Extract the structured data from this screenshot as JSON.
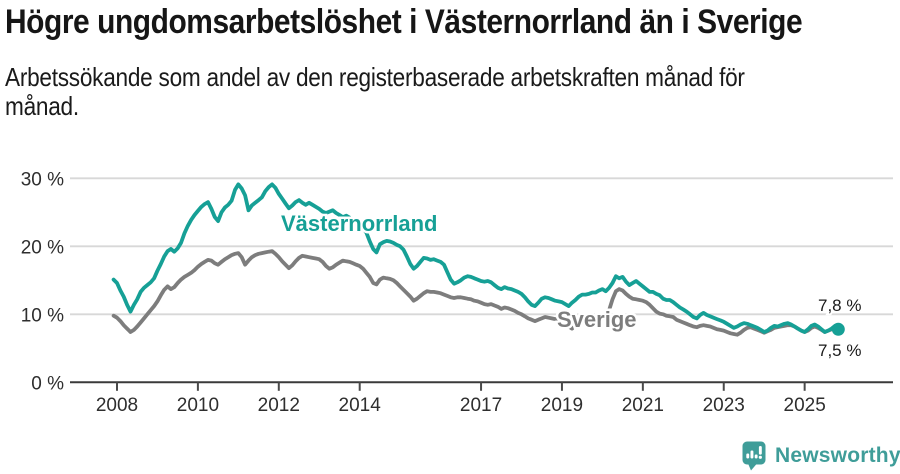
{
  "header": {
    "title": "Högre ungdomsarbetslöshet i Västernorrland än i Sverige",
    "subtitle": "Arbetssökande som andel av den registerbaserade arbetskraften månad för månad."
  },
  "footer": {
    "brand": "Newsworthy"
  },
  "colors": {
    "accent_teal": "#16a096",
    "series_gray": "#7d7d7d",
    "text_dark": "#161616",
    "gridline": "#d8d8d8",
    "axis": "#3a3a3a",
    "logo_teal": "#3f9d99",
    "background": "#ffffff"
  },
  "chart_data": {
    "type": "line",
    "title": "Högre ungdomsarbetslöshet i Västernorrland än i Sverige",
    "subtitle": "Arbetssökande som andel av den registerbaserade arbetskraften månad för månad.",
    "xlabel": "",
    "ylabel": "",
    "ylim": [
      0,
      30
    ],
    "xlim": [
      2007.9,
      2026.2
    ],
    "grid": "horizontal",
    "legend_position": "inline-labels",
    "y_ticks": [
      {
        "v": 0,
        "label": "0 %"
      },
      {
        "v": 10,
        "label": "10 %"
      },
      {
        "v": 20,
        "label": "20 %"
      },
      {
        "v": 30,
        "label": "30 %"
      }
    ],
    "x_ticks": [
      {
        "v": 2008,
        "label": "2008"
      },
      {
        "v": 2010,
        "label": "2010"
      },
      {
        "v": 2012,
        "label": "2012"
      },
      {
        "v": 2014,
        "label": "2014"
      },
      {
        "v": 2017,
        "label": "2017"
      },
      {
        "v": 2019,
        "label": "2019"
      },
      {
        "v": 2021,
        "label": "2021"
      },
      {
        "v": 2023,
        "label": "2023"
      },
      {
        "v": 2025,
        "label": "2025"
      }
    ],
    "x_start": 2007.9167,
    "x_step_years": 0.08333,
    "series": [
      {
        "name": "Västernorrland",
        "color": "#16a096",
        "end_label": "7,8 %",
        "end_value": 7.8,
        "end_dot": true,
        "values": [
          15.1,
          14.6,
          13.5,
          12.6,
          11.4,
          10.4,
          11.4,
          12.2,
          13.3,
          13.9,
          14.3,
          14.7,
          15.3,
          16.4,
          17.4,
          18.5,
          19.3,
          19.6,
          19.2,
          19.7,
          20.5,
          21.9,
          23.0,
          23.9,
          24.6,
          25.2,
          25.8,
          26.2,
          26.5,
          25.5,
          24.3,
          23.7,
          25.0,
          25.7,
          26.1,
          26.7,
          28.3,
          29.1,
          28.5,
          27.5,
          25.3,
          26.0,
          26.4,
          26.8,
          27.2,
          28.1,
          28.7,
          29.1,
          28.6,
          27.7,
          27.0,
          26.3,
          25.6,
          26.0,
          26.5,
          26.8,
          26.4,
          26.1,
          26.4,
          26.1,
          25.8,
          25.5,
          25.1,
          24.9,
          25.1,
          25.3,
          24.9,
          24.6,
          24.3,
          24.5,
          24.2,
          23.8,
          23.4,
          23.1,
          22.6,
          22.0,
          20.7,
          19.6,
          19.1,
          20.3,
          20.6,
          20.8,
          20.7,
          20.5,
          20.2,
          20.0,
          19.5,
          18.5,
          17.4,
          16.7,
          17.1,
          17.7,
          18.3,
          18.2,
          18.0,
          18.1,
          17.9,
          17.7,
          17.3,
          16.2,
          15.1,
          14.5,
          14.7,
          15.0,
          15.4,
          15.6,
          15.5,
          15.3,
          15.1,
          14.9,
          14.8,
          14.9,
          14.7,
          14.3,
          13.9,
          13.7,
          14.0,
          13.8,
          13.7,
          13.5,
          13.3,
          13.0,
          12.5,
          11.9,
          11.4,
          11.2,
          11.7,
          12.3,
          12.5,
          12.4,
          12.2,
          12.0,
          11.9,
          11.8,
          11.5,
          11.2,
          11.7,
          12.1,
          12.6,
          12.9,
          12.9,
          13.0,
          13.2,
          13.2,
          13.5,
          13.7,
          13.4,
          13.9,
          14.6,
          15.6,
          15.3,
          15.5,
          14.8,
          14.3,
          14.6,
          14.9,
          14.5,
          14.1,
          13.7,
          13.3,
          13.3,
          13.0,
          12.8,
          12.3,
          12.1,
          12.1,
          11.8,
          11.4,
          11.0,
          10.7,
          10.4,
          10.0,
          9.6,
          9.4,
          9.9,
          10.2,
          9.9,
          9.7,
          9.5,
          9.3,
          9.1,
          8.9,
          8.6,
          8.3,
          8.0,
          8.2,
          8.5,
          8.7,
          8.6,
          8.4,
          8.2,
          8.0,
          7.7,
          7.4,
          7.6,
          8.0,
          8.3,
          8.2,
          8.4,
          8.6,
          8.7,
          8.5,
          8.2,
          7.9,
          7.6,
          7.4,
          7.8,
          8.3,
          8.5,
          8.2,
          7.8,
          7.4,
          7.6,
          7.9,
          8.3,
          7.8
        ]
      },
      {
        "name": "Sverige",
        "color": "#7d7d7d",
        "end_label": "7,5 %",
        "end_value": 7.5,
        "end_dot": false,
        "values": [
          9.8,
          9.5,
          9.0,
          8.4,
          7.9,
          7.4,
          7.7,
          8.2,
          8.8,
          9.4,
          10.0,
          10.6,
          11.2,
          11.9,
          12.8,
          13.6,
          14.1,
          13.7,
          14.0,
          14.6,
          15.1,
          15.5,
          15.8,
          16.1,
          16.5,
          17.0,
          17.4,
          17.7,
          18.0,
          17.9,
          17.5,
          17.3,
          17.7,
          18.1,
          18.4,
          18.7,
          18.9,
          19.0,
          18.4,
          17.3,
          17.9,
          18.4,
          18.7,
          18.9,
          19.0,
          19.1,
          19.2,
          19.3,
          18.9,
          18.4,
          17.8,
          17.3,
          16.8,
          17.2,
          17.8,
          18.3,
          18.6,
          18.5,
          18.4,
          18.3,
          18.2,
          18.1,
          17.7,
          17.1,
          16.7,
          16.9,
          17.3,
          17.6,
          17.9,
          17.8,
          17.7,
          17.5,
          17.3,
          17.1,
          16.7,
          16.1,
          15.5,
          14.6,
          14.4,
          15.1,
          15.4,
          15.3,
          15.2,
          15.0,
          14.6,
          14.1,
          13.6,
          13.1,
          12.6,
          12.0,
          12.3,
          12.7,
          13.1,
          13.4,
          13.3,
          13.3,
          13.2,
          13.1,
          12.9,
          12.7,
          12.5,
          12.4,
          12.5,
          12.5,
          12.4,
          12.3,
          12.2,
          12.0,
          11.9,
          11.7,
          11.5,
          11.4,
          11.5,
          11.3,
          11.1,
          10.8,
          11.0,
          10.9,
          10.7,
          10.5,
          10.2,
          10.0,
          9.7,
          9.4,
          9.2,
          9.0,
          9.2,
          9.4,
          9.6,
          9.5,
          9.4,
          9.3,
          9.1,
          9.0,
          8.7,
          8.2,
          7.9,
          8.3,
          8.7,
          8.9,
          9.0,
          9.1,
          9.2,
          9.2,
          9.3,
          9.4,
          9.6,
          10.6,
          12.2,
          13.4,
          13.7,
          13.5,
          13.0,
          12.6,
          12.3,
          12.2,
          12.1,
          12.0,
          11.8,
          11.4,
          10.9,
          10.4,
          10.1,
          10.0,
          9.8,
          9.7,
          9.6,
          9.2,
          9.0,
          8.8,
          8.6,
          8.4,
          8.2,
          8.1,
          8.3,
          8.4,
          8.3,
          8.2,
          8.0,
          7.8,
          7.7,
          7.6,
          7.4,
          7.2,
          7.1,
          7.0,
          7.3,
          7.7,
          8.0,
          8.1,
          7.9,
          7.7,
          7.5,
          7.3,
          7.5,
          7.7,
          8.0,
          8.1,
          8.2,
          8.3,
          8.4,
          8.4,
          8.2,
          7.9,
          7.6,
          7.4,
          7.6,
          8.0,
          8.2,
          8.0,
          7.7,
          7.4,
          7.6,
          7.8,
          8.0,
          7.5
        ]
      }
    ]
  }
}
